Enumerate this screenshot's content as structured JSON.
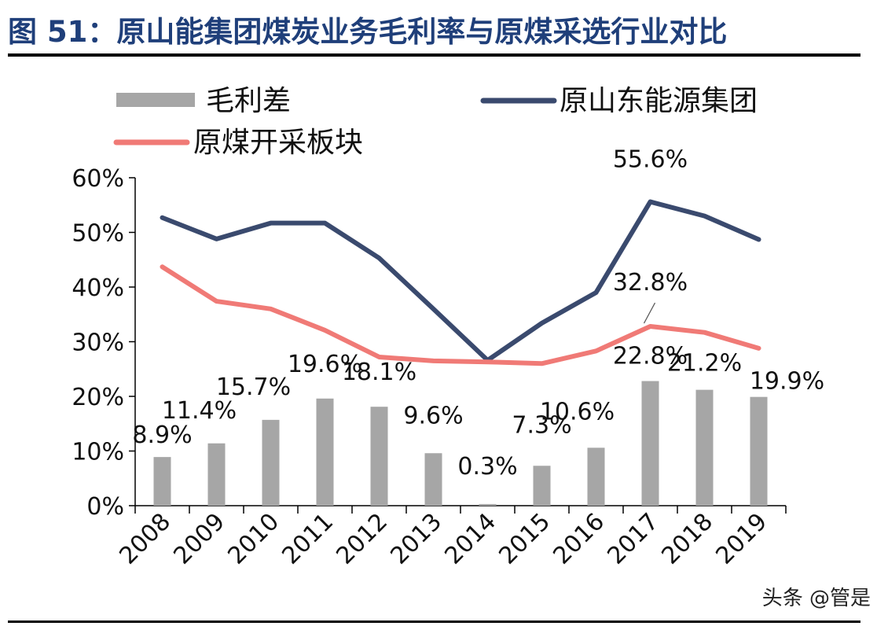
{
  "page": {
    "title": "图 51：原山能集团煤炭业务毛利率与原煤采选行业对比",
    "watermark": "头条 @管是"
  },
  "chart_data": {
    "type": "bar",
    "categories": [
      "2008",
      "2009",
      "2010",
      "2011",
      "2012",
      "2013",
      "2014",
      "2015",
      "2016",
      "2017",
      "2018",
      "2019"
    ],
    "ylim": [
      0,
      60
    ],
    "yticks": [
      "0%",
      "10%",
      "20%",
      "30%",
      "40%",
      "50%",
      "60%"
    ],
    "series": [
      {
        "name": "毛利差",
        "type": "bar",
        "color": "#a6a6a6",
        "values": [
          8.9,
          11.4,
          15.7,
          19.6,
          18.1,
          9.6,
          0.3,
          7.3,
          10.6,
          22.8,
          21.2,
          19.9
        ],
        "labels": [
          "8.9%",
          "11.4%",
          "15.7%",
          "19.6%",
          "18.1%",
          "9.6%",
          "0.3%",
          "7.3%",
          "10.6%",
          "22.8%",
          "21.2%",
          "19.9%"
        ]
      },
      {
        "name": "原山东能源集团",
        "type": "line",
        "color": "#3a4a6e",
        "values": [
          52.7,
          48.8,
          51.7,
          51.7,
          45.3,
          36.0,
          26.6,
          33.4,
          39.0,
          55.6,
          53.0,
          48.7
        ]
      },
      {
        "name": "原煤开采板块",
        "type": "line",
        "color": "#f07a76",
        "values": [
          43.7,
          37.4,
          36.0,
          32.1,
          27.2,
          26.5,
          26.3,
          26.0,
          28.3,
          32.8,
          31.7,
          28.8
        ]
      }
    ],
    "annotations": [
      {
        "series": 1,
        "index": 9,
        "text": "55.6%"
      },
      {
        "series": 2,
        "index": 9,
        "text": "32.8%"
      }
    ],
    "legend_position": "top",
    "grid": false
  }
}
